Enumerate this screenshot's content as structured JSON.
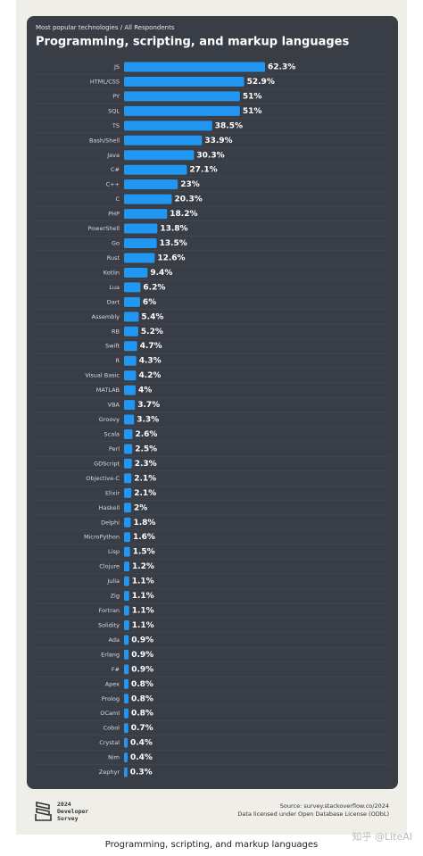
{
  "chart_data": {
    "type": "bar",
    "orientation": "horizontal",
    "subtitle": "Most popular technologies / All Respondents",
    "title": "Programming, scripting, and markup languages",
    "color": "#2196f3",
    "categories": [
      "JS",
      "HTML/CSS",
      "PY",
      "SQL",
      "TS",
      "Bash/Shell",
      "Java",
      "C#",
      "C++",
      "C",
      "PHP",
      "PowerShell",
      "Go",
      "Rust",
      "Kotlin",
      "Lua",
      "Dart",
      "Assembly",
      "RB",
      "Swift",
      "R",
      "Visual Basic",
      "MATLAB",
      "VBA",
      "Groovy",
      "Scala",
      "Perl",
      "GDScript",
      "Objective-C",
      "Elixir",
      "Haskell",
      "Delphi",
      "MicroPython",
      "Lisp",
      "Clojure",
      "Julia",
      "Zig",
      "Fortran",
      "Solidity",
      "Ada",
      "Erlang",
      "F#",
      "Apex",
      "Prolog",
      "OCaml",
      "Cobol",
      "Crystal",
      "Nim",
      "Zephyr"
    ],
    "values": [
      62.3,
      52.9,
      51,
      51,
      38.5,
      33.9,
      30.3,
      27.1,
      23,
      20.3,
      18.2,
      13.8,
      13.5,
      12.6,
      9.4,
      6.2,
      6,
      5.4,
      5.2,
      4.7,
      4.3,
      4.2,
      4,
      3.7,
      3.3,
      2.6,
      2.5,
      2.3,
      2.1,
      2.1,
      2,
      1.8,
      1.6,
      1.5,
      1.2,
      1.1,
      1.1,
      1.1,
      1.1,
      0.9,
      0.9,
      0.9,
      0.8,
      0.8,
      0.8,
      0.7,
      0.4,
      0.4,
      0.3
    ],
    "value_labels": [
      "62.3%",
      "52.9%",
      "51%",
      "51%",
      "38.5%",
      "33.9%",
      "30.3%",
      "27.1%",
      "23%",
      "20.3%",
      "18.2%",
      "13.8%",
      "13.5%",
      "12.6%",
      "9.4%",
      "6.2%",
      "6%",
      "5.4%",
      "5.2%",
      "4.7%",
      "4.3%",
      "4.2%",
      "4%",
      "3.7%",
      "3.3%",
      "2.6%",
      "2.5%",
      "2.3%",
      "2.1%",
      "2.1%",
      "2%",
      "1.8%",
      "1.6%",
      "1.5%",
      "1.2%",
      "1.1%",
      "1.1%",
      "1.1%",
      "1.1%",
      "0.9%",
      "0.9%",
      "0.9%",
      "0.8%",
      "0.8%",
      "0.8%",
      "0.7%",
      "0.4%",
      "0.4%",
      "0.3%"
    ]
  },
  "footer": {
    "logo_lines": [
      "2024",
      "Developer",
      "Survey"
    ],
    "source": "Source: survey.stackoverflow.co/2024",
    "license": "Data licensed under Open Database License (ODbL)",
    "watermark": "知乎 @LiteAI"
  },
  "caption": "Programming, scripting, and markup languages"
}
